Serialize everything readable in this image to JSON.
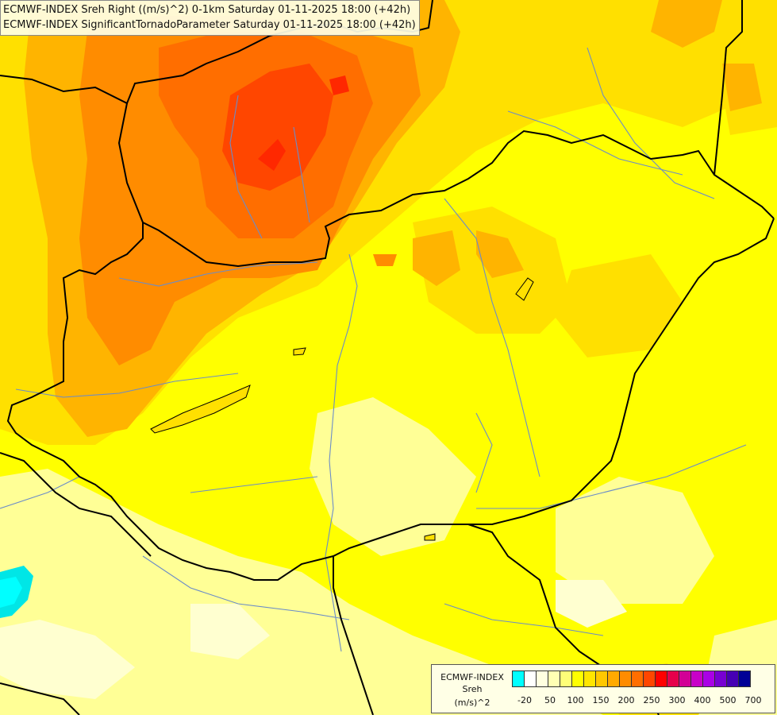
{
  "titles": {
    "line1": "ECMWF-INDEX Sreh Right ((m/s)^2) 0-1km Saturday 01-11-2025 18:00 (+42h)",
    "line2": "ECMWF-INDEX SignificantTornadoParameter Saturday 01-11-2025 18:00 (+42h)"
  },
  "legend": {
    "model": "ECMWF-INDEX",
    "param": "Sreh",
    "unit": "(m/s)^2",
    "colors": [
      "#00ffff",
      "#ffffff",
      "#ffffe0",
      "#ffffb4",
      "#ffff78",
      "#ffff00",
      "#ffe600",
      "#ffc800",
      "#ffaa00",
      "#ff8c00",
      "#ff6e00",
      "#ff4600",
      "#ff0000",
      "#e6004b",
      "#d20096",
      "#c800c8",
      "#aa00e6",
      "#7800d2",
      "#4600b4",
      "#000096"
    ],
    "tick_labels": [
      "-20",
      "50",
      "100",
      "150",
      "200",
      "250",
      "300",
      "400",
      "500",
      "700"
    ]
  },
  "colors": {
    "background": "#ffff00",
    "pale_yellow": "#ffff80",
    "gold": "#ffe000",
    "orange": "#ffb400",
    "dark_orange": "#ff8c00",
    "red_orange": "#ff5a00",
    "cyan": "#00ffff",
    "border": "#000000",
    "river": "#6b8cc8"
  }
}
